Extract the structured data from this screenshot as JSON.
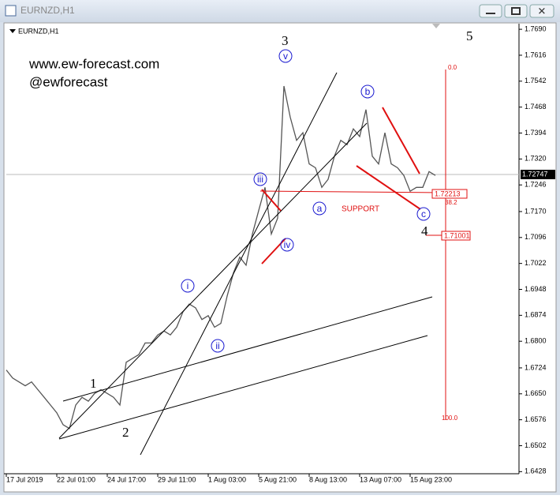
{
  "chart_data": {
    "type": "line",
    "title": "EURNZD,H1",
    "color": "#555555",
    "categories": [
      "17 Jul 2019",
      null,
      null,
      null,
      null,
      null,
      null,
      null,
      "22 Jul 01:00",
      null,
      null,
      null,
      null,
      null,
      null,
      null,
      "24 Jul 17:00",
      null,
      null,
      null,
      null,
      null,
      null,
      null,
      "29 Jul 11:00",
      null,
      null,
      null,
      null,
      null,
      null,
      null,
      "1 Aug 03:00",
      null,
      null,
      null,
      null,
      null,
      null,
      null,
      "5 Aug 21:00",
      null,
      null,
      null,
      null,
      null,
      null,
      null,
      "8 Aug 13:00",
      null,
      null,
      null,
      null,
      null,
      null,
      null,
      "13 Aug 07:00",
      null,
      null,
      null,
      null,
      null,
      null,
      null,
      "15 Aug 23:00",
      null,
      null,
      null,
      null,
      null,
      null,
      null,
      null,
      null,
      null,
      null,
      null,
      null,
      null,
      null,
      null
    ],
    "values": [
      1.6718,
      1.6695,
      1.6684,
      1.6673,
      1.6684,
      1.6662,
      1.664,
      1.6618,
      1.6596,
      1.6562,
      1.6551,
      1.6618,
      1.664,
      1.6629,
      1.6651,
      1.6662,
      1.6651,
      1.664,
      1.6618,
      1.674,
      1.6751,
      1.6762,
      1.6795,
      1.6795,
      1.6818,
      1.6829,
      1.6818,
      1.684,
      1.6884,
      1.6906,
      1.6895,
      1.6862,
      1.6873,
      1.684,
      1.6851,
      1.6929,
      1.6995,
      1.704,
      1.7017,
      1.7106,
      1.7173,
      1.7239,
      1.7106,
      1.7151,
      1.7528,
      1.7439,
      1.7373,
      1.7395,
      1.7306,
      1.7295,
      1.7239,
      1.7262,
      1.7328,
      1.7373,
      1.7361,
      1.7406,
      1.7384,
      1.7461,
      1.7328,
      1.7306,
      1.7395,
      1.7306,
      1.7295,
      1.7273,
      1.7228,
      1.7239,
      1.7239,
      1.7284,
      1.7273,
      null,
      null,
      null,
      null,
      null,
      null,
      null,
      null,
      null,
      null,
      null,
      null
    ],
    "ylim": [
      1.6422,
      1.7706
    ],
    "yticks": [
      {
        "value": 1.769,
        "label": "1.7690"
      },
      {
        "value": 1.7616,
        "label": "1.7616"
      },
      {
        "value": 1.7542,
        "label": "1.7542"
      },
      {
        "value": 1.7468,
        "label": "1.7468"
      },
      {
        "value": 1.7394,
        "label": "1.7394"
      },
      {
        "value": 1.732,
        "label": "1.7320"
      },
      {
        "value": 1.7246,
        "label": "1.7246"
      },
      {
        "value": 1.717,
        "label": "1.7170"
      },
      {
        "value": 1.7096,
        "label": "1.7096"
      },
      {
        "value": 1.7022,
        "label": "1.7022"
      },
      {
        "value": 1.6948,
        "label": "1.6948"
      },
      {
        "value": 1.6874,
        "label": "1.6874"
      },
      {
        "value": 1.68,
        "label": "1.6800"
      },
      {
        "value": 1.6724,
        "label": "1.6724"
      },
      {
        "value": 1.665,
        "label": "1.6650"
      },
      {
        "value": 1.6576,
        "label": "1.6576"
      },
      {
        "value": 1.6502,
        "label": "1.6502"
      },
      {
        "value": 1.6428,
        "label": "1.6428"
      }
    ],
    "grid": false,
    "annotations": {
      "website": "www.ew-forecast.com",
      "handle": "@ewforecast",
      "wave_1": "1",
      "wave_2": "2",
      "wave_3": "3",
      "wave_4": "4",
      "wave_5": "5",
      "wave_i": "i",
      "wave_ii": "ii",
      "wave_iii": "iii",
      "wave_iv": "iv",
      "wave_v": "v",
      "wave_a": "a",
      "wave_b": "b",
      "wave_c": "c",
      "support": "SUPPORT",
      "level_support": "1.72213",
      "level_wave4": "1.71001",
      "fib_0": "0.0",
      "fib_38": "38.2",
      "fib_100": "100.0",
      "current_price": "1.72747"
    }
  }
}
